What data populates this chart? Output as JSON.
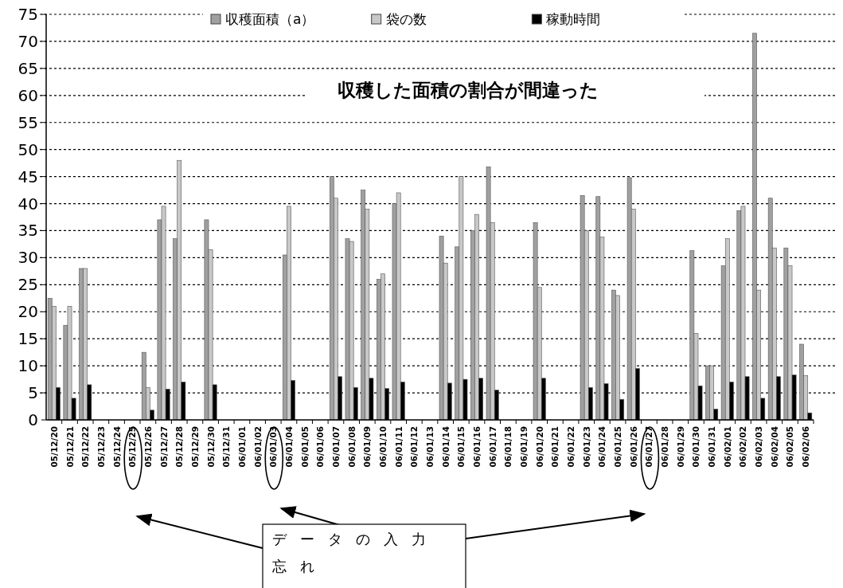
{
  "chart_data": {
    "type": "bar",
    "title": "収穫した面積の割合が間違った",
    "categories": [
      "05/12/20",
      "05/12/21",
      "05/12/22",
      "05/12/23",
      "05/12/24",
      "05/12/25",
      "05/12/26",
      "05/12/27",
      "05/12/28",
      "05/12/29",
      "05/12/30",
      "05/12/31",
      "06/01/01",
      "06/01/02",
      "06/01/03",
      "06/01/04",
      "06/01/05",
      "06/01/06",
      "06/01/07",
      "06/01/08",
      "06/01/09",
      "06/01/10",
      "06/01/11",
      "06/01/12",
      "06/01/13",
      "06/01/14",
      "06/01/15",
      "06/01/16",
      "06/01/17",
      "06/01/18",
      "06/01/19",
      "06/01/20",
      "06/01/21",
      "06/01/22",
      "06/01/23",
      "06/01/24",
      "06/01/25",
      "06/01/26",
      "06/01/27",
      "06/01/28",
      "06/01/29",
      "06/01/30",
      "06/01/31",
      "06/02/01",
      "06/02/02",
      "06/02/03",
      "06/02/04",
      "06/02/05",
      "06/02/06"
    ],
    "series": [
      {
        "name": "収穫面積（a）",
        "color": "#a0a0a0",
        "values": [
          22.5,
          17.5,
          28,
          null,
          null,
          null,
          12.5,
          37,
          33.5,
          null,
          37,
          null,
          null,
          null,
          null,
          30.5,
          null,
          null,
          45,
          33.5,
          42.5,
          26,
          40,
          null,
          null,
          34,
          32,
          35,
          46.8,
          null,
          null,
          36.5,
          null,
          null,
          41.5,
          41.3,
          24,
          44.8,
          null,
          null,
          null,
          31.3,
          10,
          28.5,
          38.7,
          71.5,
          41,
          31.8,
          14
        ]
      },
      {
        "name": "袋の数",
        "color": "#c8c8c8",
        "values": [
          21,
          21,
          28,
          null,
          null,
          null,
          6,
          39.5,
          48,
          null,
          31.5,
          null,
          null,
          null,
          null,
          39.5,
          null,
          null,
          41,
          33,
          39,
          27,
          42,
          null,
          null,
          29,
          45,
          38,
          36.5,
          null,
          null,
          24.5,
          null,
          null,
          35,
          33.8,
          23,
          39,
          null,
          null,
          null,
          16,
          10,
          33.5,
          39.5,
          24,
          31.8,
          28.5,
          8.2
        ]
      },
      {
        "name": "稼動時間",
        "color": "#000000",
        "values": [
          6,
          4,
          6.5,
          null,
          null,
          null,
          1.8,
          5.7,
          7,
          null,
          6.5,
          null,
          null,
          null,
          null,
          7.3,
          null,
          null,
          8,
          6,
          7.7,
          5.8,
          7,
          null,
          null,
          6.8,
          7.5,
          7.7,
          5.5,
          null,
          null,
          7.7,
          null,
          null,
          6,
          6.7,
          3.8,
          9.5,
          null,
          null,
          null,
          6.3,
          2,
          7,
          8,
          4,
          8,
          8.3,
          1.3
        ]
      }
    ],
    "ylim": [
      0,
      75
    ],
    "yticks": [
      0,
      5,
      10,
      15,
      20,
      25,
      30,
      35,
      40,
      45,
      50,
      55,
      60,
      65,
      70,
      75
    ],
    "grid": "y",
    "legend": "top",
    "annotations": [
      "データの入力忘れ"
    ]
  }
}
